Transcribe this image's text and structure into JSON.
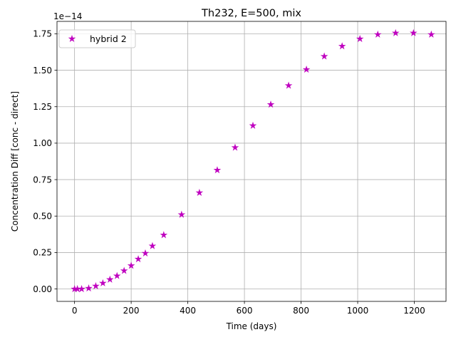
{
  "chart_data": {
    "type": "scatter",
    "title": "Th232, E=500, mix",
    "xlabel": "Time (days)",
    "ylabel": "Concentration Diff [conc - direct]",
    "y_offset_label": "1e−14",
    "xlim": [
      -62,
      1312
    ],
    "ylim": [
      -0.085,
      1.835
    ],
    "x_ticks": [
      0,
      200,
      400,
      600,
      800,
      1000,
      1200
    ],
    "x_tick_labels": [
      "0",
      "200",
      "400",
      "600",
      "800",
      "1000",
      "1200"
    ],
    "y_ticks": [
      0.0,
      0.25,
      0.5,
      0.75,
      1.0,
      1.25,
      1.5,
      1.75
    ],
    "y_tick_labels": [
      "0.00",
      "0.25",
      "0.50",
      "0.75",
      "1.00",
      "1.25",
      "1.50",
      "1.75"
    ],
    "grid": true,
    "legend_position": "upper-left",
    "series": [
      {
        "name": "hybrid 2",
        "color": "#bf00bf",
        "marker": "star",
        "points": [
          [
            0,
            0.0
          ],
          [
            10,
            0.0
          ],
          [
            25,
            0.0
          ],
          [
            50,
            0.005
          ],
          [
            75,
            0.02
          ],
          [
            100,
            0.04
          ],
          [
            125,
            0.065
          ],
          [
            150,
            0.09
          ],
          [
            175,
            0.125
          ],
          [
            200,
            0.16
          ],
          [
            225,
            0.205
          ],
          [
            250,
            0.245
          ],
          [
            275,
            0.295
          ],
          [
            315,
            0.37
          ],
          [
            378,
            0.51
          ],
          [
            441,
            0.66
          ],
          [
            504,
            0.815
          ],
          [
            567,
            0.97
          ],
          [
            630,
            1.12
          ],
          [
            693,
            1.265
          ],
          [
            756,
            1.395
          ],
          [
            819,
            1.505
          ],
          [
            882,
            1.595
          ],
          [
            945,
            1.665
          ],
          [
            1008,
            1.715
          ],
          [
            1071,
            1.745
          ],
          [
            1134,
            1.755
          ],
          [
            1197,
            1.755
          ],
          [
            1260,
            1.745
          ]
        ]
      }
    ]
  }
}
